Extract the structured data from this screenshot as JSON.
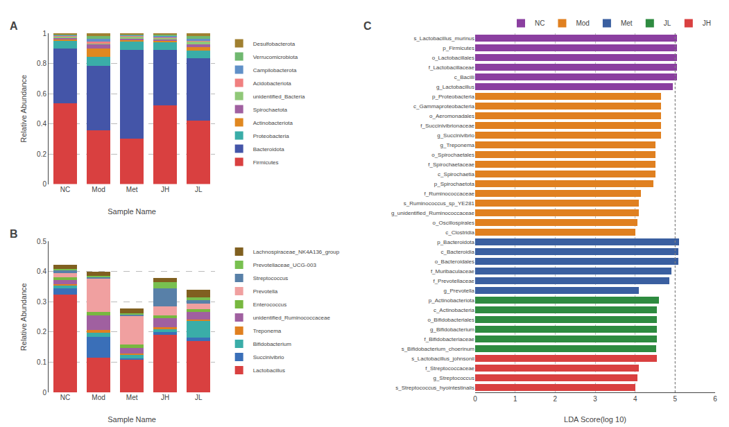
{
  "chart_data": [
    {
      "type": "bar",
      "title": "A",
      "stacked": true,
      "grid": true,
      "xlabel": "Sample Name",
      "ylabel": "Relative Abundance",
      "categories": [
        "NC",
        "Mod",
        "Met",
        "JH",
        "JL"
      ],
      "series": [
        {
          "name": "Firmicutes",
          "color": "#D94040",
          "values": [
            0.535,
            0.355,
            0.3,
            0.52,
            0.42
          ]
        },
        {
          "name": "Bacteroidota",
          "color": "#4455A8",
          "values": [
            0.365,
            0.43,
            0.59,
            0.37,
            0.415
          ]
        },
        {
          "name": "Proteobacteria",
          "color": "#3AADA8",
          "values": [
            0.05,
            0.06,
            0.055,
            0.048,
            0.05
          ]
        },
        {
          "name": "Actinobacteriota",
          "color": "#E08820",
          "values": [
            0.012,
            0.055,
            0.01,
            0.012,
            0.025
          ]
        },
        {
          "name": "Spirochaetota",
          "color": "#A060A0",
          "values": [
            0.008,
            0.025,
            0.008,
            0.008,
            0.015
          ]
        },
        {
          "name": "unidentified_Bacteria",
          "color": "#90C878",
          "values": [
            0.01,
            0.01,
            0.015,
            0.01,
            0.02
          ]
        },
        {
          "name": "Acidobacteriota",
          "color": "#F08080",
          "values": [
            0.005,
            0.008,
            0.005,
            0.005,
            0.008
          ]
        },
        {
          "name": "Campilobacterota",
          "color": "#6090C8",
          "values": [
            0.005,
            0.018,
            0.005,
            0.008,
            0.008
          ]
        },
        {
          "name": "Verrucomicrobiota",
          "color": "#70B870",
          "values": [
            0.005,
            0.022,
            0.005,
            0.012,
            0.022
          ]
        },
        {
          "name": "Desulfobacterota",
          "color": "#A08030",
          "values": [
            0.005,
            0.017,
            0.007,
            0.007,
            0.017
          ]
        }
      ],
      "ylim": [
        0,
        1
      ],
      "yticks": [
        0,
        0.2,
        0.4,
        0.6,
        0.8,
        1
      ]
    },
    {
      "type": "bar",
      "title": "B",
      "stacked": true,
      "grid": true,
      "xlabel": "Sample Name",
      "ylabel": "Relative Abundance",
      "categories": [
        "NC",
        "Mod",
        "Met",
        "JH",
        "JL"
      ],
      "series": [
        {
          "name": "Lactobacillus",
          "color": "#D94040",
          "values": [
            0.325,
            0.115,
            0.108,
            0.19,
            0.17
          ]
        },
        {
          "name": "Succinivibrio",
          "color": "#3A6FB8",
          "values": [
            0.02,
            0.068,
            0.005,
            0.01,
            0.012
          ]
        },
        {
          "name": "Bifidobacterium",
          "color": "#3AADA8",
          "values": [
            0.008,
            0.015,
            0.012,
            0.01,
            0.055
          ]
        },
        {
          "name": "Treponema",
          "color": "#E08020",
          "values": [
            0.005,
            0.008,
            0.003,
            0.005,
            0.005
          ]
        },
        {
          "name": "unidentified_Ruminococcaceae",
          "color": "#A060A0",
          "values": [
            0.015,
            0.05,
            0.02,
            0.03,
            0.025
          ]
        },
        {
          "name": "Enterococcus",
          "color": "#78B840",
          "values": [
            0.008,
            0.01,
            0.01,
            0.01,
            0.008
          ]
        },
        {
          "name": "Prevotella",
          "color": "#F0A0A0",
          "values": [
            0.015,
            0.11,
            0.095,
            0.03,
            0.02
          ]
        },
        {
          "name": "Streptococcus",
          "color": "#5880A8",
          "values": [
            0.008,
            0.005,
            0.005,
            0.06,
            0.01
          ]
        },
        {
          "name": "Prevotellaceae_UCG-003",
          "color": "#78C050",
          "values": [
            0.005,
            0.005,
            0.005,
            0.02,
            0.01
          ]
        },
        {
          "name": "Lachnospiraceae_NK4A136_group",
          "color": "#806020",
          "values": [
            0.013,
            0.014,
            0.015,
            0.015,
            0.025
          ]
        }
      ],
      "ylim": [
        0,
        0.5
      ],
      "yticks": [
        0,
        0.1,
        0.2,
        0.3,
        0.4,
        0.5
      ]
    },
    {
      "type": "bar",
      "title": "C",
      "orientation": "horizontal",
      "grid": true,
      "xlabel": "LDA Score(log 10)",
      "categories": [
        "s_Lactobacillus_murinus",
        "p_Firmicutes",
        "o_Lactobacillales",
        "f_Lactobacillaceae",
        "c_Bacilli",
        "g_Lactobacillus",
        "p_Proteobacteria",
        "c_Gammaproteobacteria",
        "o_Aeromonadales",
        "f_Succinivibrionaceae",
        "g_Succinivibrio",
        "g_Treponema",
        "o_Spirochaetales",
        "f_Spirochaetaceae",
        "c_Spirochaetia",
        "p_Spirochaetota",
        "f_Ruminococcaceae",
        "s_Ruminococcus_sp_YE281",
        "g_unidentified_Ruminococcaceae",
        "o_Oscillospirales",
        "c_Clostridia",
        "p_Bacteroidota",
        "c_Bacteroidia",
        "o_Bacteroidales",
        "f_Muribaculaceae",
        "f_Prevotellaceae",
        "g_Prevotella",
        "p_Actinobacteriota",
        "c_Actinobacteria",
        "o_Bifidobacteriales",
        "g_Bifidobacterium",
        "f_Bifidobacteriaceae",
        "s_Bifidobacterium_choerinum",
        "s_Lactobacillus_johnsonii",
        "f_Streptococcaceae",
        "g_Streptococcus",
        "s_Streptococcus_hyointestinalis"
      ],
      "series": [
        {
          "name": "JH",
          "color": "#D94040",
          "values": [
            null,
            null,
            null,
            null,
            null,
            null,
            null,
            null,
            null,
            null,
            null,
            null,
            null,
            null,
            null,
            null,
            null,
            null,
            null,
            null,
            null,
            null,
            null,
            null,
            null,
            null,
            null,
            null,
            null,
            null,
            null,
            null,
            null,
            4.55,
            4.1,
            4.05,
            4.0
          ]
        },
        {
          "name": "JL",
          "color": "#2E8B40",
          "values": [
            null,
            null,
            null,
            null,
            null,
            null,
            null,
            null,
            null,
            null,
            null,
            null,
            null,
            null,
            null,
            null,
            null,
            null,
            null,
            null,
            null,
            null,
            null,
            null,
            null,
            null,
            null,
            4.6,
            4.55,
            4.55,
            4.55,
            4.55,
            4.52,
            null,
            null,
            null,
            null
          ]
        },
        {
          "name": "Met",
          "color": "#3A5FA0",
          "values": [
            null,
            null,
            null,
            null,
            null,
            null,
            null,
            null,
            null,
            null,
            null,
            null,
            null,
            null,
            null,
            null,
            null,
            null,
            null,
            null,
            null,
            5.1,
            5.08,
            5.08,
            4.9,
            4.85,
            4.1,
            null,
            null,
            null,
            null,
            null,
            null,
            null,
            null,
            null,
            null
          ]
        },
        {
          "name": "Mod",
          "color": "#E08020",
          "values": [
            null,
            null,
            null,
            null,
            null,
            null,
            4.65,
            4.65,
            4.65,
            4.65,
            4.65,
            4.5,
            4.5,
            4.5,
            4.5,
            4.45,
            4.15,
            4.1,
            4.1,
            4.05,
            4.0,
            null,
            null,
            null,
            null,
            null,
            null,
            null,
            null,
            null,
            null,
            null,
            null,
            null,
            null,
            null,
            null
          ]
        },
        {
          "name": "NC",
          "color": "#8B3FA0",
          "values": [
            5.05,
            5.05,
            5.05,
            5.05,
            5.05,
            4.95,
            null,
            null,
            null,
            null,
            null,
            null,
            null,
            null,
            null,
            null,
            null,
            null,
            null,
            null,
            null,
            null,
            null,
            null,
            null,
            null,
            null,
            null,
            null,
            null,
            null,
            null,
            null,
            null,
            null,
            null,
            null
          ]
        }
      ],
      "xlim": [
        0,
        6
      ],
      "xticks": [
        0,
        1,
        2,
        3,
        4,
        5,
        6
      ],
      "vline": 5
    }
  ]
}
